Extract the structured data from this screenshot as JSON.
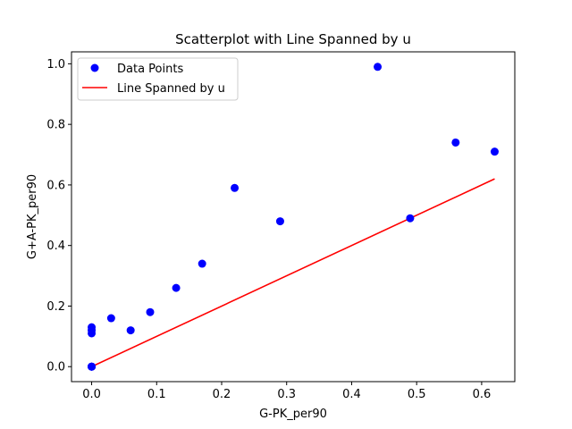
{
  "chart_data": {
    "type": "scatter",
    "title": "Scatterplot with Line Spanned by u",
    "xlabel": "G-PK_per90",
    "ylabel": "G+A-PK_per90",
    "xlim": [
      -0.031,
      0.651
    ],
    "ylim": [
      -0.0495,
      1.0395
    ],
    "xticks": [
      0.0,
      0.1,
      0.2,
      0.3,
      0.4,
      0.5,
      0.6
    ],
    "xtick_labels": [
      "0.0",
      "0.1",
      "0.2",
      "0.3",
      "0.4",
      "0.5",
      "0.6"
    ],
    "yticks": [
      0.0,
      0.2,
      0.4,
      0.6,
      0.8,
      1.0
    ],
    "ytick_labels": [
      "0.0",
      "0.2",
      "0.4",
      "0.6",
      "0.8",
      "1.0"
    ],
    "grid": false,
    "legend_position": "upper-left",
    "series": [
      {
        "name": "Data Points",
        "kind": "scatter",
        "color": "#0000ff",
        "points": [
          [
            0.0,
            0.0
          ],
          [
            0.0,
            0.0
          ],
          [
            0.0,
            0.0
          ],
          [
            0.0,
            0.0
          ],
          [
            0.0,
            0.11
          ],
          [
            0.0,
            0.12
          ],
          [
            0.0,
            0.13
          ],
          [
            0.03,
            0.16
          ],
          [
            0.06,
            0.12
          ],
          [
            0.09,
            0.18
          ],
          [
            0.13,
            0.26
          ],
          [
            0.17,
            0.34
          ],
          [
            0.22,
            0.59
          ],
          [
            0.29,
            0.48
          ],
          [
            0.44,
            0.99
          ],
          [
            0.49,
            0.49
          ],
          [
            0.56,
            0.74
          ],
          [
            0.62,
            0.71
          ]
        ]
      },
      {
        "name": "Line Spanned by u",
        "kind": "line",
        "color": "#ff0000",
        "points": [
          [
            0.0,
            0.0
          ],
          [
            0.62,
            0.62
          ]
        ]
      }
    ]
  }
}
